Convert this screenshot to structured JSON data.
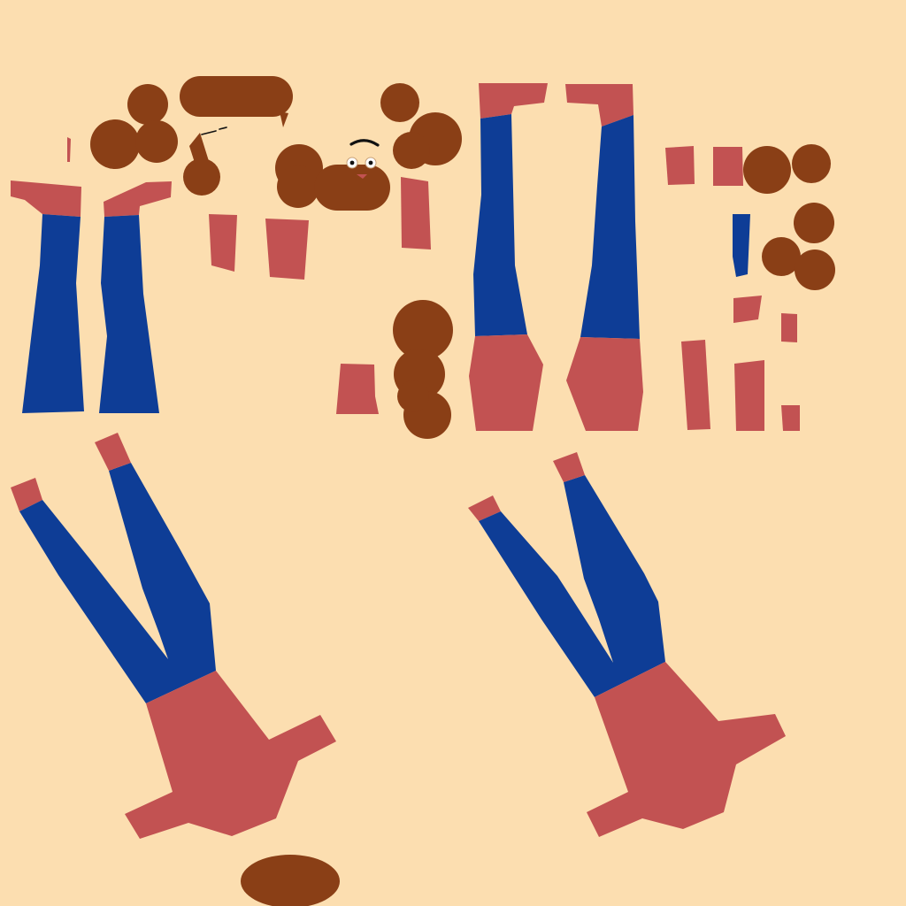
{
  "texture": {
    "kind": "character UV texture atlas",
    "text_content": []
  },
  "palette": {
    "background": "#FCDEB0",
    "shirt": "#C25252",
    "pants": "#0E3D96",
    "hair": "#8A3F16",
    "ink": "#111111",
    "eye_white": "#FFFFFF"
  }
}
